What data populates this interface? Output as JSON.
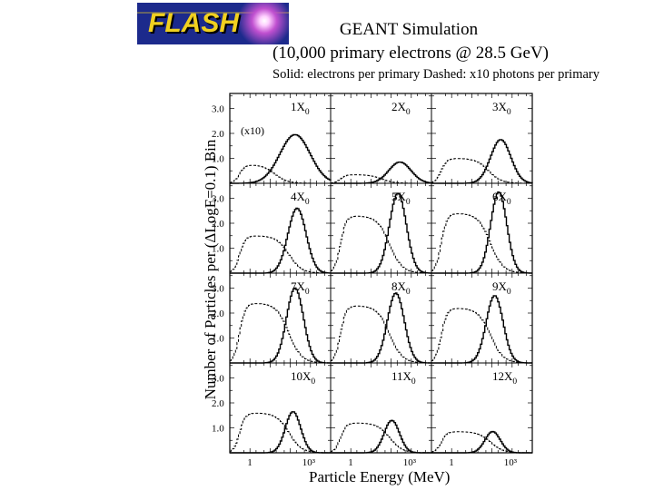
{
  "logo": {
    "text": "FLASH",
    "label": "FLASH logo"
  },
  "chart_data": {
    "type": "line",
    "title": "GEANT Simulation",
    "subtitle": "(10,000 primary electrons @ 28.5 GeV)",
    "legend": "Solid: electrons per primary   Dashed: x10 photons per primary",
    "xlabel": "Particle Energy (MeV)",
    "ylabel": "Number of  Particles per (ΔLogE=0.1) Bin",
    "x_scale": "log",
    "xlim": [
      0.1,
      10000
    ],
    "ylim": [
      0,
      3.6
    ],
    "y_ticks": [
      "3.0",
      "2.0",
      "1.0"
    ],
    "x_ticks": [
      "1",
      "10³"
    ],
    "annotation": "(x10)",
    "panels": [
      {
        "label": "1X",
        "sub": "0",
        "electron_peak": 1.95,
        "electron_center": 2.2,
        "electron_width": 0.75,
        "photon_peak": 0.75,
        "photon_center": 0.3
      },
      {
        "label": "2X",
        "sub": "0",
        "electron_peak": 0.85,
        "electron_center": 2.4,
        "electron_width": 0.55,
        "photon_peak": 0.35,
        "photon_center": 0.6
      },
      {
        "label": "3X",
        "sub": "0",
        "electron_peak": 1.75,
        "electron_center": 2.4,
        "electron_width": 0.5,
        "photon_peak": 1.0,
        "photon_center": 0.9
      },
      {
        "label": "4X",
        "sub": "0",
        "electron_peak": 2.6,
        "electron_center": 2.3,
        "electron_width": 0.45,
        "photon_peak": 1.5,
        "photon_center": 1.0
      },
      {
        "label": "5X",
        "sub": "0",
        "electron_peak": 3.2,
        "electron_center": 2.3,
        "electron_width": 0.42,
        "photon_peak": 2.3,
        "photon_center": 1.0
      },
      {
        "label": "6X",
        "sub": "0",
        "electron_peak": 3.25,
        "electron_center": 2.3,
        "electron_width": 0.4,
        "photon_peak": 2.4,
        "photon_center": 1.0
      },
      {
        "label": "7X",
        "sub": "0",
        "electron_peak": 3.0,
        "electron_center": 2.2,
        "electron_width": 0.42,
        "photon_peak": 2.4,
        "photon_center": 1.0
      },
      {
        "label": "8X",
        "sub": "0",
        "electron_peak": 2.8,
        "electron_center": 2.2,
        "electron_width": 0.42,
        "photon_peak": 2.3,
        "photon_center": 1.0
      },
      {
        "label": "9X",
        "sub": "0",
        "electron_peak": 2.7,
        "electron_center": 2.1,
        "electron_width": 0.42,
        "photon_peak": 2.2,
        "photon_center": 1.0
      },
      {
        "label": "10X",
        "sub": "0",
        "electron_peak": 1.65,
        "electron_center": 2.1,
        "electron_width": 0.38,
        "photon_peak": 1.6,
        "photon_center": 1.0
      },
      {
        "label": "11X",
        "sub": "0",
        "electron_peak": 1.3,
        "electron_center": 2.0,
        "electron_width": 0.38,
        "photon_peak": 1.2,
        "photon_center": 1.0
      },
      {
        "label": "12X",
        "sub": "0",
        "electron_peak": 0.85,
        "electron_center": 2.0,
        "electron_width": 0.38,
        "photon_peak": 0.85,
        "photon_center": 1.0
      }
    ]
  }
}
